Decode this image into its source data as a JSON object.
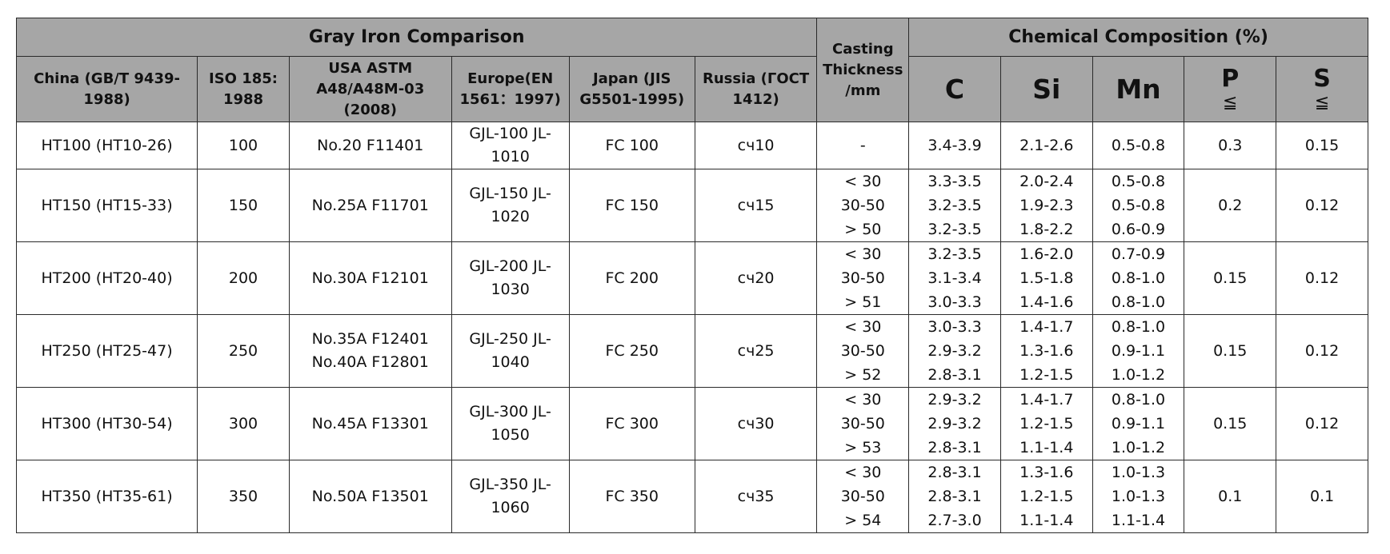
{
  "header": {
    "group_title": "Gray Iron Comparison",
    "casting_thickness": "Casting Thickness /mm",
    "chem_title": "Chemical Composition  (%)",
    "china": "China  (GB/T 9439-1988)",
    "iso": "ISO 185: 1988",
    "usa": "USA ASTM A48/A48M-03 (2008)",
    "europe": "Europe(EN 1561：1997)",
    "japan": "Japan  (JIS G5501-1995)",
    "russia": "Russia  (ГОСТ 1412)",
    "c": "C",
    "si": "Si",
    "mn": "Mn",
    "p": "P",
    "s": "S",
    "le": "≦"
  },
  "rows": [
    {
      "china": "HT100 (HT10-26)",
      "iso": "100",
      "usa": [
        "No.20 F11401"
      ],
      "europe": "GJL-100 JL-1010",
      "japan": "FC 100",
      "russia": "сч10",
      "thickness": [
        "-"
      ],
      "c": [
        "3.4-3.9"
      ],
      "si": [
        "2.1-2.6"
      ],
      "mn": [
        "0.5-0.8"
      ],
      "p": "0.3",
      "s": "0.15"
    },
    {
      "china": "HT150 (HT15-33)",
      "iso": "150",
      "usa": [
        "No.25A F11701"
      ],
      "europe": "GJL-150 JL-1020",
      "japan": "FC 150",
      "russia": "сч15",
      "thickness": [
        "< 30",
        "30-50",
        "> 50"
      ],
      "c": [
        "3.3-3.5",
        "3.2-3.5",
        "3.2-3.5"
      ],
      "si": [
        "2.0-2.4",
        "1.9-2.3",
        "1.8-2.2"
      ],
      "mn": [
        "0.5-0.8",
        "0.5-0.8",
        "0.6-0.9"
      ],
      "p": "0.2",
      "s": "0.12"
    },
    {
      "china": "HT200 (HT20-40)",
      "iso": "200",
      "usa": [
        "No.30A F12101"
      ],
      "europe": "GJL-200 JL-1030",
      "japan": "FC 200",
      "russia": "сч20",
      "thickness": [
        "< 30",
        "30-50",
        "> 51"
      ],
      "c": [
        "3.2-3.5",
        "3.1-3.4",
        "3.0-3.3"
      ],
      "si": [
        "1.6-2.0",
        "1.5-1.8",
        "1.4-1.6"
      ],
      "mn": [
        "0.7-0.9",
        "0.8-1.0",
        "0.8-1.0"
      ],
      "p": "0.15",
      "s": "0.12"
    },
    {
      "china": "HT250 (HT25-47)",
      "iso": "250",
      "usa": [
        "No.35A F12401",
        "No.40A F12801"
      ],
      "europe": "GJL-250 JL-1040",
      "japan": "FC 250",
      "russia": "сч25",
      "thickness": [
        "< 30",
        "30-50",
        "> 52"
      ],
      "c": [
        "3.0-3.3",
        "2.9-3.2",
        "2.8-3.1"
      ],
      "si": [
        "1.4-1.7",
        "1.3-1.6",
        "1.2-1.5"
      ],
      "mn": [
        "0.8-1.0",
        "0.9-1.1",
        "1.0-1.2"
      ],
      "p": "0.15",
      "s": "0.12"
    },
    {
      "china": "HT300  (HT30-54)",
      "iso": "300",
      "usa": [
        "No.45A F13301"
      ],
      "europe": "GJL-300 JL-1050",
      "japan": "FC 300",
      "russia": "сч30",
      "thickness": [
        "< 30",
        "30-50",
        "> 53"
      ],
      "c": [
        "2.9-3.2",
        "2.9-3.2",
        "2.8-3.1"
      ],
      "si": [
        "1.4-1.7",
        "1.2-1.5",
        "1.1-1.4"
      ],
      "mn": [
        "0.8-1.0",
        "0.9-1.1",
        "1.0-1.2"
      ],
      "p": "0.15",
      "s": "0.12"
    },
    {
      "china": "HT350  (HT35-61)",
      "iso": "350",
      "usa": [
        "No.50A F13501"
      ],
      "europe": "GJL-350 JL-1060",
      "japan": "FC 350",
      "russia": "сч35",
      "thickness": [
        "< 30",
        "30-50",
        "> 54"
      ],
      "c": [
        "2.8-3.1",
        "2.8-3.1",
        "2.7-3.0"
      ],
      "si": [
        "1.3-1.6",
        "1.2-1.5",
        "1.1-1.4"
      ],
      "mn": [
        "1.0-1.3",
        "1.0-1.3",
        "1.1-1.4"
      ],
      "p": "0.1",
      "s": "0.1"
    }
  ]
}
